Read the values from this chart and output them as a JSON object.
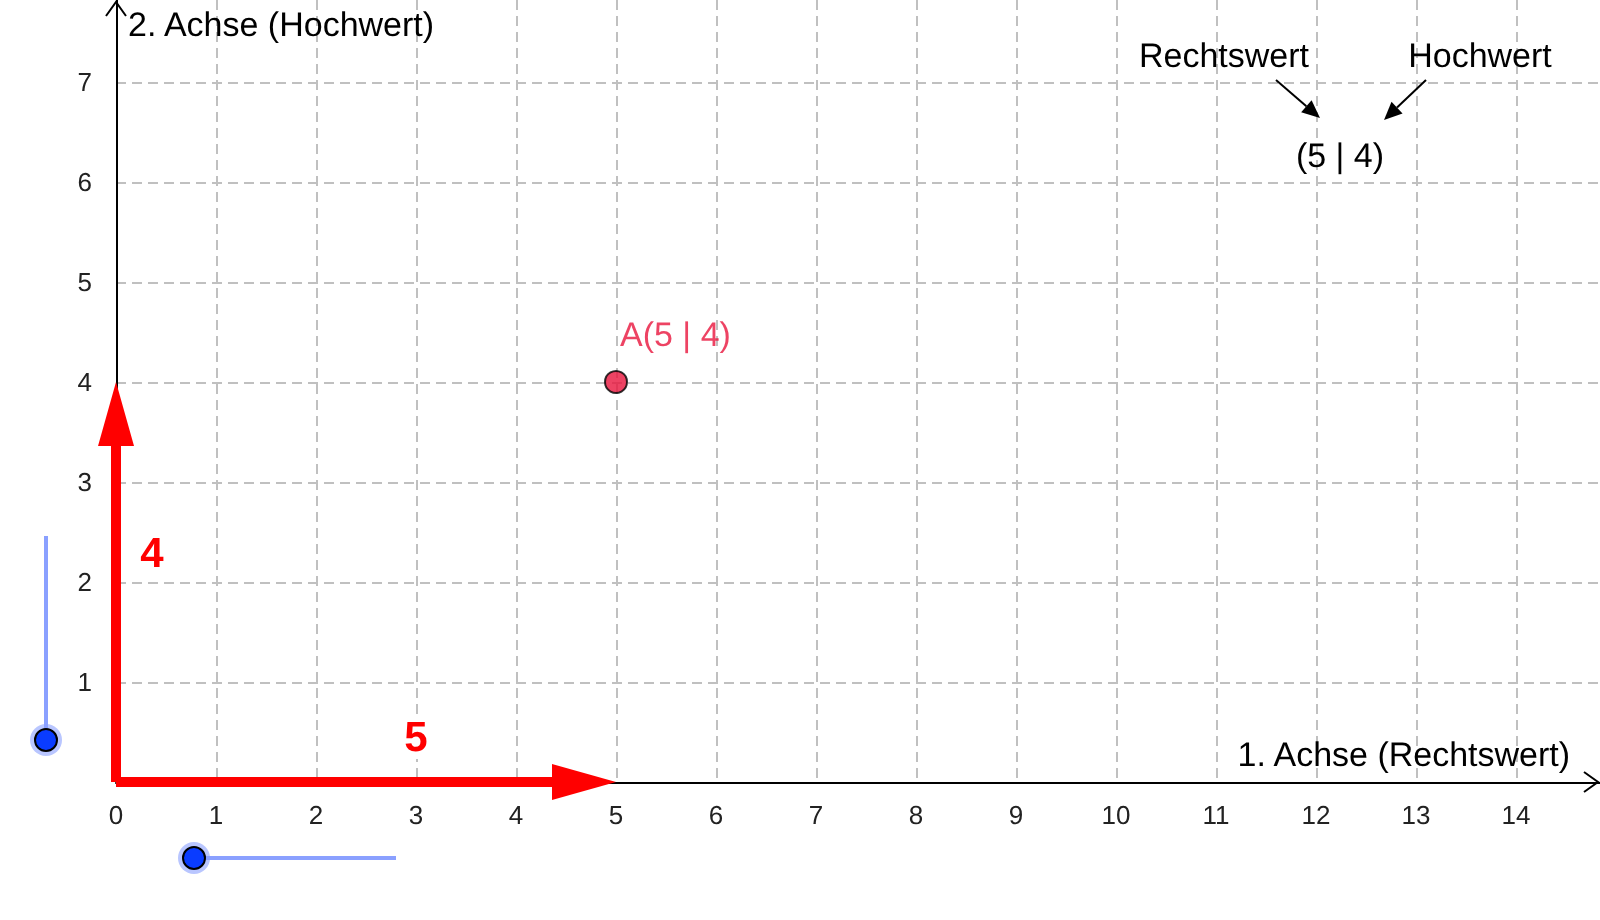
{
  "chart_data": {
    "type": "scatter",
    "xlabel": "1. Achse (Rechtswert)",
    "ylabel": "2. Achse (Hochwert)",
    "x": [
      5
    ],
    "series": [
      {
        "color": "#e8143c",
        "values": [
          4
        ],
        "value_labels": [
          "A(5 | 4)"
        ]
      }
    ],
    "xlim": [
      0,
      14.84
    ],
    "ylim": [
      0,
      7.82
    ],
    "xticks": [
      0,
      1,
      2,
      3,
      4,
      5,
      6,
      7,
      8,
      9,
      10,
      11,
      12,
      13,
      14
    ],
    "yticks": [
      1,
      2,
      3,
      4,
      5,
      6,
      7
    ],
    "grid": true,
    "marker": "circle",
    "annotations": [
      "5",
      "4",
      "Rechtswert",
      "Hochwert",
      "(5 | 4)"
    ]
  }
}
